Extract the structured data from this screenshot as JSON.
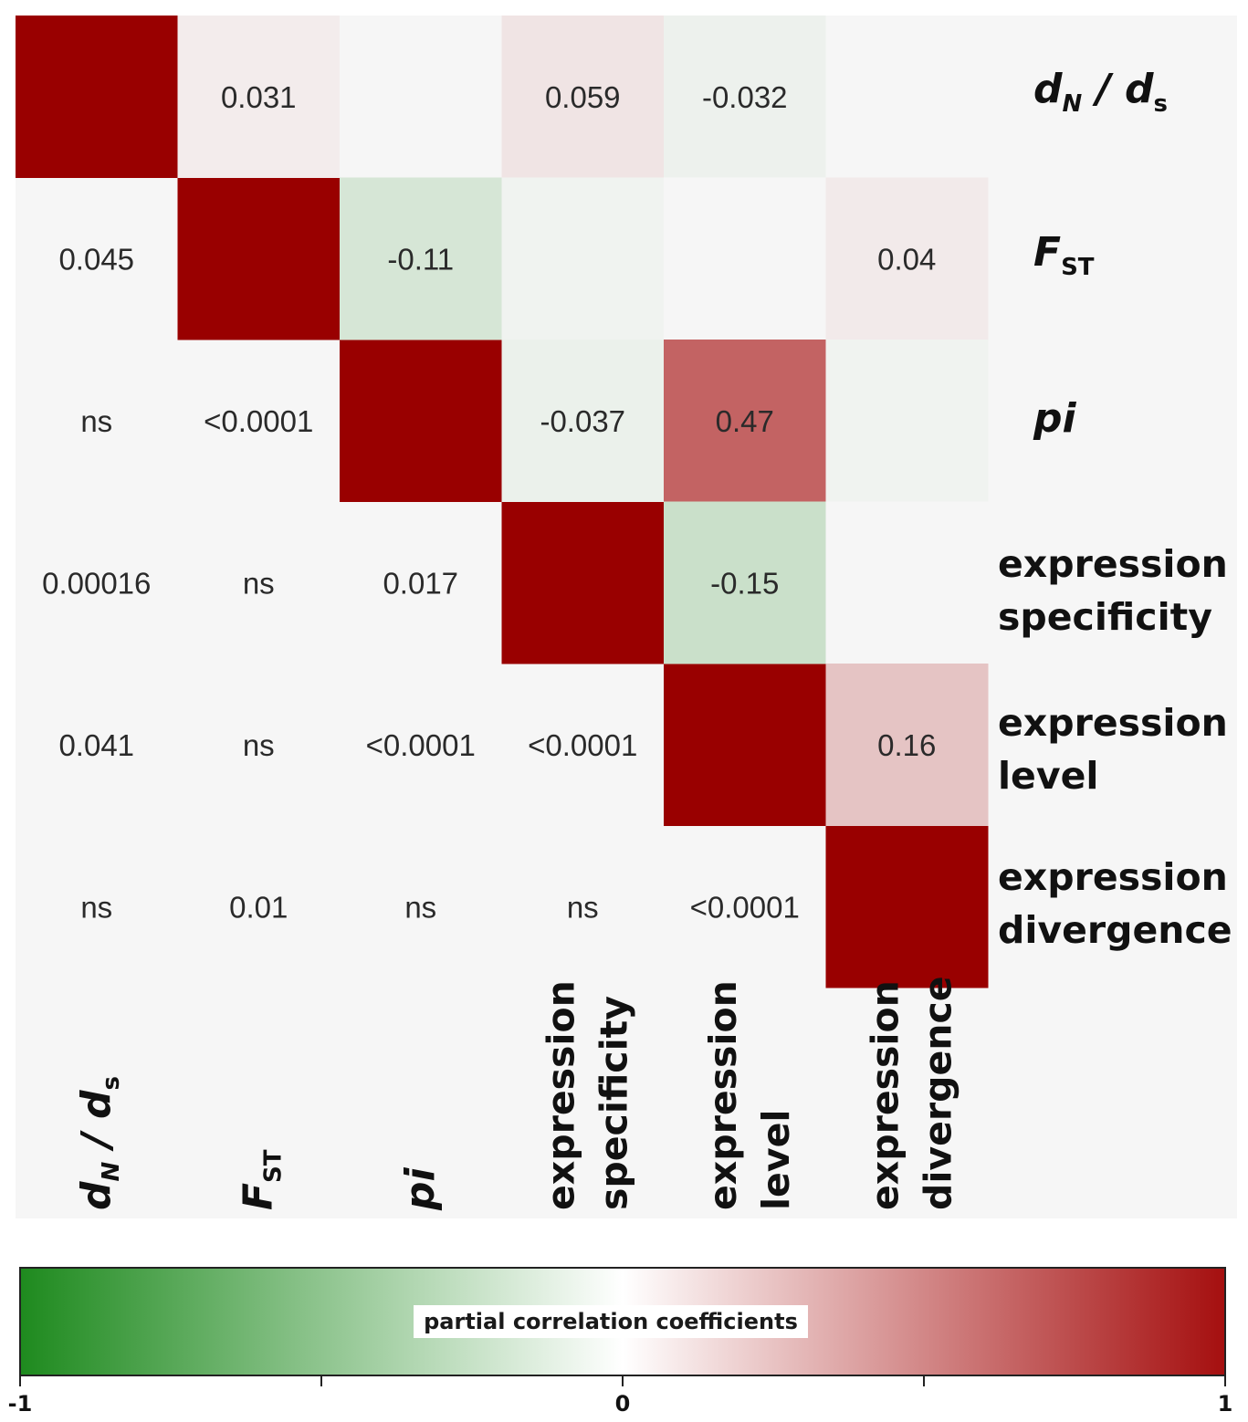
{
  "chart_data": {
    "type": "heatmap",
    "variables": [
      "dN / dS",
      "FST",
      "pi",
      "expression specificity",
      "expression level",
      "expression divergence"
    ],
    "label_parts": [
      [
        {
          "t": "d",
          "i": true
        },
        {
          "t": "N",
          "sub": true,
          "i": true
        },
        {
          "t": " / d",
          "i": true
        },
        {
          "t": "s",
          "sub": true
        }
      ],
      [
        {
          "t": "F",
          "i": true
        },
        {
          "t": "ST",
          "sub": true
        }
      ],
      [
        {
          "t": "pi",
          "i": true
        }
      ],
      [
        {
          "t": "expression"
        },
        {
          "t": "specificity",
          "line": 2
        }
      ],
      [
        {
          "t": "expression"
        },
        {
          "t": "level",
          "line": 2
        }
      ],
      [
        {
          "t": "expression"
        },
        {
          "t": "divergence",
          "line": 2
        }
      ]
    ],
    "upper_coefficients": [
      {
        "row": 0,
        "col": 1,
        "value": 0.031,
        "label": "0.031"
      },
      {
        "row": 0,
        "col": 2,
        "value": 0.0,
        "label": ""
      },
      {
        "row": 0,
        "col": 3,
        "value": 0.059,
        "label": "0.059"
      },
      {
        "row": 0,
        "col": 4,
        "value": -0.032,
        "label": "-0.032"
      },
      {
        "row": 0,
        "col": 5,
        "value": 0.0,
        "label": ""
      },
      {
        "row": 1,
        "col": 2,
        "value": -0.11,
        "label": "-0.11"
      },
      {
        "row": 1,
        "col": 3,
        "value": -0.02,
        "label": ""
      },
      {
        "row": 1,
        "col": 4,
        "value": 0.0,
        "label": ""
      },
      {
        "row": 1,
        "col": 5,
        "value": 0.04,
        "label": "0.04"
      },
      {
        "row": 2,
        "col": 3,
        "value": -0.037,
        "label": "-0.037"
      },
      {
        "row": 2,
        "col": 4,
        "value": 0.47,
        "label": "0.47"
      },
      {
        "row": 2,
        "col": 5,
        "value": -0.02,
        "label": ""
      },
      {
        "row": 3,
        "col": 4,
        "value": -0.15,
        "label": "-0.15"
      },
      {
        "row": 3,
        "col": 5,
        "value": 0.0,
        "label": ""
      },
      {
        "row": 4,
        "col": 5,
        "value": 0.16,
        "label": "0.16"
      }
    ],
    "lower_pvalues": [
      {
        "row": 1,
        "col": 0,
        "label": "0.045"
      },
      {
        "row": 2,
        "col": 0,
        "label": "ns"
      },
      {
        "row": 2,
        "col": 1,
        "label": "<0.0001"
      },
      {
        "row": 3,
        "col": 0,
        "label": "0.00016"
      },
      {
        "row": 3,
        "col": 1,
        "label": "ns"
      },
      {
        "row": 3,
        "col": 2,
        "label": "0.017"
      },
      {
        "row": 4,
        "col": 0,
        "label": "0.041"
      },
      {
        "row": 4,
        "col": 1,
        "label": "ns"
      },
      {
        "row": 4,
        "col": 2,
        "label": "<0.0001"
      },
      {
        "row": 4,
        "col": 3,
        "label": "<0.0001"
      },
      {
        "row": 5,
        "col": 0,
        "label": "ns"
      },
      {
        "row": 5,
        "col": 1,
        "label": "0.01"
      },
      {
        "row": 5,
        "col": 2,
        "label": "ns"
      },
      {
        "row": 5,
        "col": 3,
        "label": "ns"
      },
      {
        "row": 5,
        "col": 4,
        "label": "<0.0001"
      }
    ],
    "diagonal_value": 1,
    "colorbar": {
      "title": "partial correlation coefficients",
      "range": [
        -1,
        1
      ],
      "tick_values": [
        -1,
        -0.5,
        0,
        0.5,
        1
      ],
      "tick_labels": [
        {
          "value": -1,
          "label": "-1"
        },
        {
          "value": 0,
          "label": "0"
        },
        {
          "value": 1,
          "label": "1"
        }
      ],
      "position": "bottom"
    },
    "colors": {
      "negative": "#1e8a1e",
      "zero": "#ffffff",
      "positive": "#a50f0f",
      "diagonal": "#990000",
      "background": "#f6f6f6"
    }
  }
}
